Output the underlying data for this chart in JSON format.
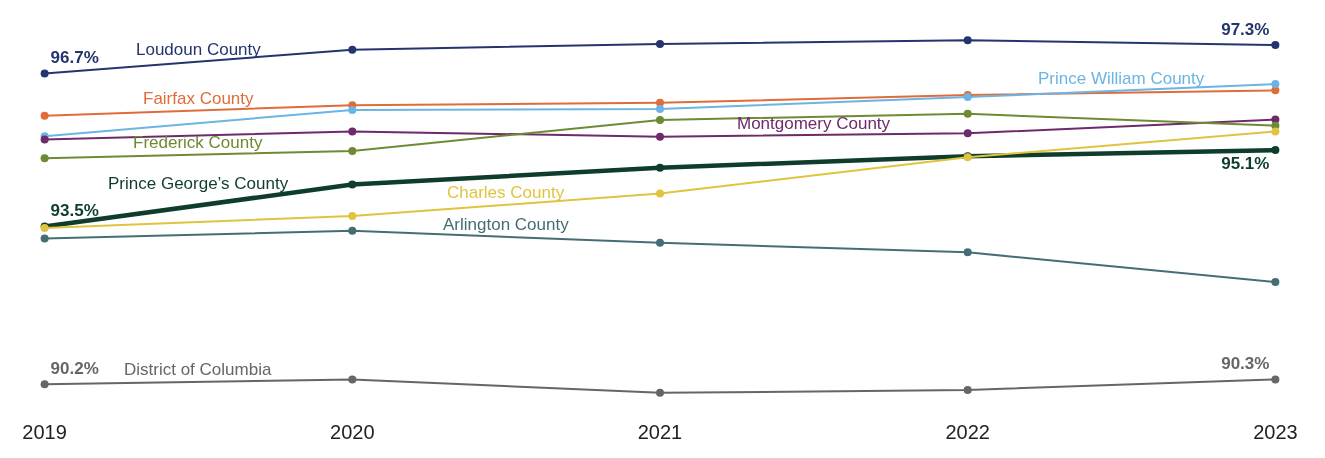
{
  "chart_data": {
    "type": "line",
    "categories": [
      "2019",
      "2020",
      "2021",
      "2022",
      "2023"
    ],
    "marker": "circle",
    "legend": false,
    "tick_labels": "x",
    "series": [
      {
        "name": "Loudoun County",
        "color": "#24346e",
        "values": [
          96.7,
          97.2,
          97.32,
          97.4,
          97.3
        ],
        "value_labels": [
          "96.7%",
          null,
          null,
          null,
          "97.3%"
        ]
      },
      {
        "name": "Fairfax County",
        "color": "#e06c3a",
        "values": [
          95.82,
          96.04,
          96.09,
          96.25,
          96.35
        ]
      },
      {
        "name": "Prince William County",
        "color": "#6cb4e4",
        "values": [
          95.39,
          95.94,
          95.96,
          96.21,
          96.48
        ]
      },
      {
        "name": "Montgomery County",
        "color": "#6e2a6a",
        "values": [
          95.32,
          95.49,
          95.38,
          95.45,
          95.74
        ]
      },
      {
        "name": "Frederick County",
        "color": "#6e8a34",
        "values": [
          94.93,
          95.08,
          95.73,
          95.86,
          95.61
        ]
      },
      {
        "name": "Prince George’s County",
        "color": "#0e3d2c",
        "values": [
          93.5,
          94.38,
          94.73,
          94.97,
          95.1
        ],
        "value_labels": [
          "93.5%",
          null,
          null,
          null,
          "95.1%"
        ]
      },
      {
        "name": "Charles County",
        "color": "#e0c440",
        "values": [
          93.47,
          93.72,
          94.19,
          94.95,
          95.49
        ]
      },
      {
        "name": "Arlington County",
        "color": "#456e74",
        "values": [
          93.25,
          93.41,
          93.16,
          92.96,
          92.34
        ]
      },
      {
        "name": "District of Columbia",
        "color": "#666666",
        "values": [
          90.2,
          90.3,
          90.02,
          90.08,
          90.3
        ],
        "value_labels": [
          "90.2%",
          null,
          null,
          null,
          "90.3%"
        ]
      }
    ]
  }
}
